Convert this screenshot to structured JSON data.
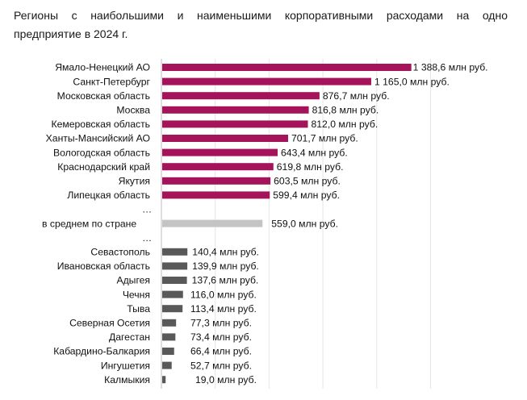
{
  "title_line1": "Регионы с наибольшими и наименьшими корпоративными расходами на одно",
  "title_line2": "предприятие в 2024 г.",
  "chart_data": {
    "type": "bar",
    "orientation": "horizontal",
    "title": "Регионы с наибольшими и наименьшими корпоративными расходами на одно предприятие в 2024 г.",
    "unit": "млн руб.",
    "grid": true,
    "xlim": [
      0,
      1500
    ],
    "colors": {
      "top": "#a5135b",
      "average": "#c4c4c4",
      "bottom": "#595959"
    },
    "rows": [
      {
        "label": "Ямало-Ненецкий АО",
        "value": 1388.6,
        "value_label": "1 388,6 млн руб.",
        "group": "top"
      },
      {
        "label": "Санкт-Петербург",
        "value": 1165.0,
        "value_label": "1 165,0 млн руб.",
        "group": "top"
      },
      {
        "label": "Московская область",
        "value": 876.7,
        "value_label": "876,7 млн руб.",
        "group": "top"
      },
      {
        "label": "Москва",
        "value": 816.8,
        "value_label": "816,8 млн руб.",
        "group": "top"
      },
      {
        "label": "Кемеровская область",
        "value": 812.0,
        "value_label": "812,0 млн руб.",
        "group": "top"
      },
      {
        "label": "Ханты-Мансийский АО",
        "value": 701.7,
        "value_label": "701,7 млн руб.",
        "group": "top"
      },
      {
        "label": "Вологодская область",
        "value": 643.4,
        "value_label": "643,4 млн руб.",
        "group": "top"
      },
      {
        "label": "Краснодарский край",
        "value": 619.8,
        "value_label": "619,8 млн руб.",
        "group": "top"
      },
      {
        "label": "Якутия",
        "value": 603.5,
        "value_label": "603,5 млн руб.",
        "group": "top"
      },
      {
        "label": "Липецкая область",
        "value": 599.4,
        "value_label": "599,4 млн руб.",
        "group": "top"
      },
      {
        "label": "…",
        "value": null,
        "value_label": "",
        "group": "gap"
      },
      {
        "label": "в среднем по стране",
        "value": 559.0,
        "value_label": "559,0 млн руб.",
        "group": "average"
      },
      {
        "label": "…",
        "value": null,
        "value_label": "",
        "group": "gap"
      },
      {
        "label": "Севастополь",
        "value": 140.4,
        "value_label": "140,4 млн руб.",
        "group": "bottom"
      },
      {
        "label": "Ивановская область",
        "value": 139.9,
        "value_label": "139,9 млн руб.",
        "group": "bottom"
      },
      {
        "label": "Адыгея",
        "value": 137.6,
        "value_label": "137,6 млн руб.",
        "group": "bottom"
      },
      {
        "label": "Чечня",
        "value": 116.0,
        "value_label": "116,0 млн руб.",
        "group": "bottom"
      },
      {
        "label": "Тыва",
        "value": 113.4,
        "value_label": "113,4 млн руб.",
        "group": "bottom"
      },
      {
        "label": "Северная Осетия",
        "value": 77.3,
        "value_label": "77,3 млн руб.",
        "group": "bottom"
      },
      {
        "label": "Дагестан",
        "value": 73.4,
        "value_label": "73,4 млн руб.",
        "group": "bottom"
      },
      {
        "label": "Кабардино-Балкария",
        "value": 66.4,
        "value_label": "66,4 млн руб.",
        "group": "bottom"
      },
      {
        "label": "Ингушетия",
        "value": 52.7,
        "value_label": "52,7 млн руб.",
        "group": "bottom"
      },
      {
        "label": "Калмыкия",
        "value": 19.0,
        "value_label": "19,0 млн руб.",
        "group": "bottom"
      }
    ]
  }
}
